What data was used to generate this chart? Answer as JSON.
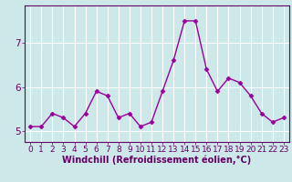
{
  "x": [
    0,
    1,
    2,
    3,
    4,
    5,
    6,
    7,
    8,
    9,
    10,
    11,
    12,
    13,
    14,
    15,
    16,
    17,
    18,
    19,
    20,
    21,
    22,
    23
  ],
  "y": [
    5.1,
    5.1,
    5.4,
    5.3,
    5.1,
    5.4,
    5.9,
    5.8,
    5.3,
    5.4,
    5.1,
    5.2,
    5.9,
    6.6,
    7.5,
    7.5,
    6.4,
    5.9,
    6.2,
    6.1,
    5.8,
    5.4,
    5.2,
    5.3
  ],
  "line_color": "#990099",
  "marker": "D",
  "marker_size": 2.5,
  "background_color": "#cce8e8",
  "grid_color": "#ffffff",
  "xlabel": "Windchill (Refroidissement éolien,°C)",
  "xlim": [
    -0.5,
    23.5
  ],
  "ylim": [
    4.75,
    7.85
  ],
  "yticks": [
    5,
    6,
    7
  ],
  "xticks": [
    0,
    1,
    2,
    3,
    4,
    5,
    6,
    7,
    8,
    9,
    10,
    11,
    12,
    13,
    14,
    15,
    16,
    17,
    18,
    19,
    20,
    21,
    22,
    23
  ],
  "xlabel_fontsize": 7,
  "tick_fontsize": 6.5,
  "line_width": 1.0,
  "spine_color": "#660066",
  "text_color": "#660066"
}
